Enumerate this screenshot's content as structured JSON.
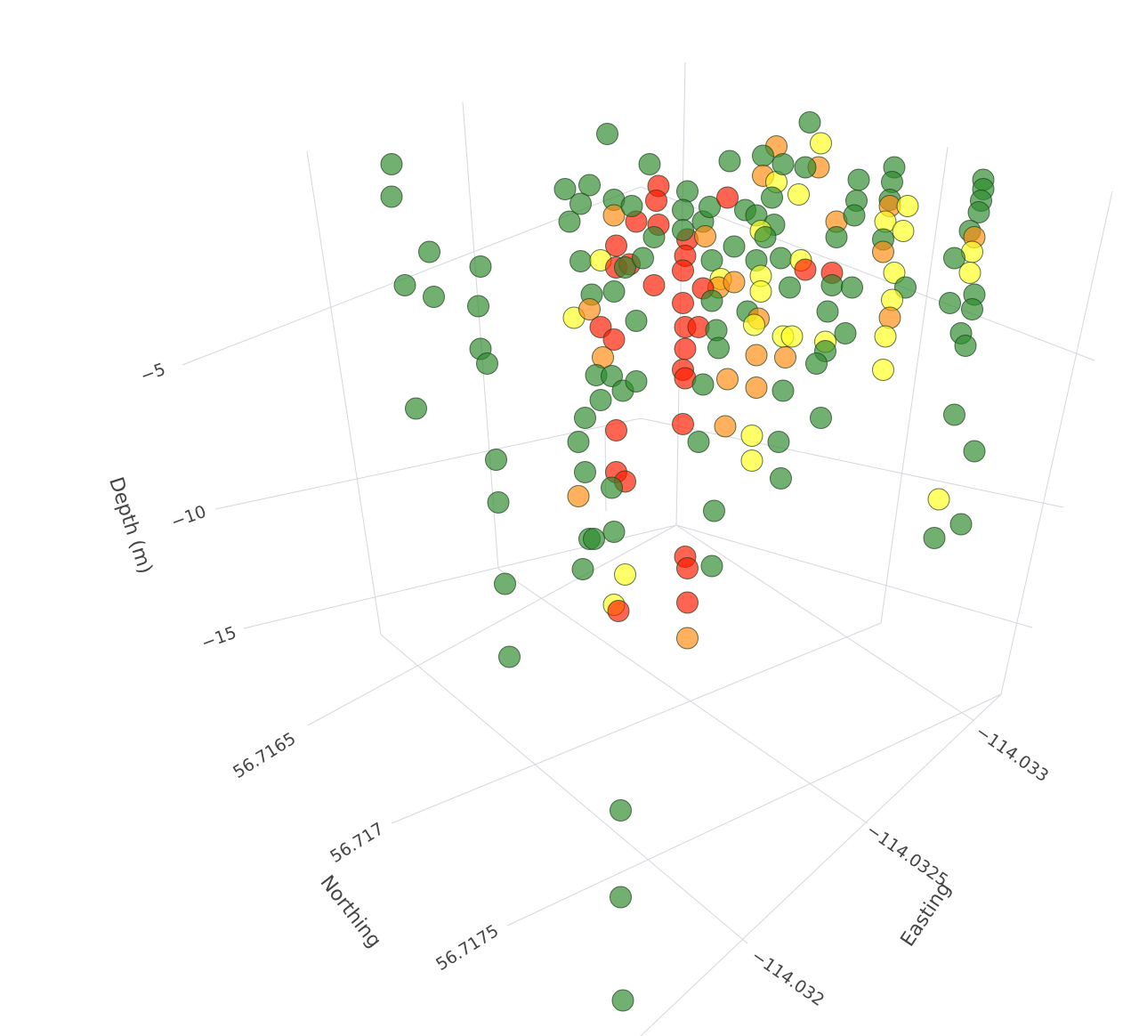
{
  "chart_data": {
    "type": "scatter3d",
    "axes": {
      "x": {
        "title": "Easting",
        "ticks": [
          "−114.033",
          "−114.0325",
          "−114.032"
        ],
        "tick_values": [
          -114.033,
          -114.0325,
          -114.032
        ]
      },
      "y": {
        "title": "Northing",
        "ticks": [
          "56.7165",
          "56.717",
          "56.7175"
        ],
        "tick_values": [
          56.7165,
          56.717,
          56.7175
        ]
      },
      "z": {
        "title": "Depth (m)",
        "ticks": [
          "−5",
          "−10",
          "−15"
        ],
        "tick_values": [
          -5,
          -10,
          -15
        ]
      }
    },
    "grid": true,
    "legend": "none",
    "colors": {
      "g": "#2e8b2e",
      "y": "#ffff20",
      "o": "#ff8c10",
      "r": "#ff1a00"
    },
    "point_fields": [
      "easting",
      "northing",
      "depth",
      "color_class"
    ],
    "points": [
      [
        -114.03189,
        56.71633,
        -1.7,
        "g"
      ],
      [
        -114.03188,
        56.71634,
        -2.6,
        "g"
      ],
      [
        -114.03196,
        56.71643,
        -4.3,
        "g"
      ],
      [
        -114.0319,
        56.71638,
        -5.3,
        "g"
      ],
      [
        -114.03196,
        56.71645,
        -5.6,
        "g"
      ],
      [
        -114.03207,
        56.71655,
        -4.7,
        "g"
      ],
      [
        -114.03206,
        56.71655,
        -5.9,
        "g"
      ],
      [
        -114.03206,
        56.71656,
        -7.2,
        "g"
      ],
      [
        -114.03207,
        56.71658,
        -7.6,
        "g"
      ],
      [
        -114.0319,
        56.71643,
        -8.9,
        "g"
      ],
      [
        -114.03207,
        56.71662,
        -10.4,
        "g"
      ],
      [
        -114.03207,
        56.71663,
        -11.7,
        "g"
      ],
      [
        -114.03207,
        56.71666,
        -14.1,
        "g"
      ],
      [
        -114.03207,
        56.71668,
        -16.3,
        "g"
      ],
      [
        -114.03238,
        56.71681,
        -0.8,
        "g"
      ],
      [
        -114.03229,
        56.71696,
        -20.8,
        "g"
      ],
      [
        -114.03227,
        56.71698,
        -23.3,
        "g"
      ],
      [
        -114.03226,
        56.717,
        -26.4,
        "g"
      ],
      [
        -114.03228,
        56.71672,
        -2.5,
        "g"
      ],
      [
        -114.03228,
        56.71674,
        -3.4,
        "g"
      ],
      [
        -114.0323,
        56.71677,
        -4.6,
        "g"
      ],
      [
        -114.03232,
        56.7168,
        -5.6,
        "g"
      ],
      [
        -114.03227,
        56.71677,
        -6.2,
        "y"
      ],
      [
        -114.03231,
        56.7168,
        -6.0,
        "o"
      ],
      [
        -114.03233,
        56.71683,
        -6.5,
        "r"
      ],
      [
        -114.03233,
        56.71684,
        -7.4,
        "o"
      ],
      [
        -114.03231,
        56.71683,
        -7.9,
        "g"
      ],
      [
        -114.03228,
        56.71681,
        -9.2,
        "g"
      ],
      [
        -114.03226,
        56.7168,
        -9.9,
        "g"
      ],
      [
        -114.03227,
        56.71682,
        -10.8,
        "g"
      ],
      [
        -114.03225,
        56.71681,
        -11.5,
        "o"
      ],
      [
        -114.03227,
        56.71684,
        -12.8,
        "g"
      ],
      [
        -114.03225,
        56.71683,
        -13.7,
        "g"
      ],
      [
        -114.03238,
        56.71684,
        -2.7,
        "g"
      ],
      [
        -114.03238,
        56.71684,
        -3.2,
        "o"
      ],
      [
        -114.03238,
        56.71685,
        -4.1,
        "r"
      ],
      [
        -114.03234,
        56.71682,
        -4.5,
        "y"
      ],
      [
        -114.03238,
        56.71685,
        -4.8,
        "r"
      ],
      [
        -114.03237,
        56.71685,
        -5.5,
        "g"
      ],
      [
        -114.03236,
        56.71686,
        -6.9,
        "r"
      ],
      [
        -114.03235,
        56.71686,
        -8.0,
        "g"
      ],
      [
        -114.03237,
        56.71689,
        -8.4,
        "g"
      ],
      [
        -114.03232,
        56.71684,
        -8.7,
        "g"
      ],
      [
        -114.03235,
        56.71688,
        -9.6,
        "r"
      ],
      [
        -114.03234,
        56.71689,
        -10.8,
        "r"
      ],
      [
        -114.03236,
        56.71691,
        -11.1,
        "r"
      ],
      [
        -114.03233,
        56.71688,
        -11.3,
        "g"
      ],
      [
        -114.03232,
        56.7169,
        -12.5,
        "g"
      ],
      [
        -114.03228,
        56.71685,
        -12.8,
        "g"
      ],
      [
        -114.03234,
        56.71693,
        -13.8,
        "y"
      ],
      [
        -114.03231,
        56.71691,
        -14.7,
        "y"
      ],
      [
        -114.03232,
        56.71692,
        -14.9,
        "r"
      ],
      [
        -114.03247,
        56.71691,
        -1.7,
        "g"
      ],
      [
        -114.03249,
        56.71693,
        -2.4,
        "r"
      ],
      [
        -114.03248,
        56.71693,
        -2.8,
        "r"
      ],
      [
        -114.03243,
        56.71689,
        -3.4,
        "r"
      ],
      [
        -114.03248,
        56.71694,
        -3.5,
        "r"
      ],
      [
        -114.03242,
        56.71688,
        -2.9,
        "g"
      ],
      [
        -114.03247,
        56.71693,
        -3.9,
        "g"
      ],
      [
        -114.03241,
        56.71688,
        -4.7,
        "r"
      ],
      [
        -114.03246,
        56.71694,
        -5.3,
        "r"
      ],
      [
        -114.0324,
        56.71687,
        -4.8,
        "g"
      ],
      [
        -114.03241,
        56.71691,
        -6.3,
        "g"
      ],
      [
        -114.0324,
        56.71692,
        -8.1,
        "g"
      ],
      [
        -114.03233,
        56.71678,
        -2.3,
        "g"
      ],
      [
        -114.03231,
        56.71676,
        -2.9,
        "g"
      ],
      [
        -114.03255,
        56.717,
        -2.5,
        "g"
      ],
      [
        -114.03254,
        56.71699,
        -3.1,
        "g"
      ],
      [
        -114.03254,
        56.71701,
        -3.9,
        "r"
      ],
      [
        -114.03254,
        56.717,
        -4.5,
        "r"
      ],
      [
        -114.03253,
        56.717,
        -4.9,
        "r"
      ],
      [
        -114.03252,
        56.71701,
        -5.8,
        "r"
      ],
      [
        -114.03252,
        56.71702,
        -6.5,
        "r"
      ],
      [
        -114.03252,
        56.71702,
        -7.2,
        "r"
      ],
      [
        -114.03251,
        56.71702,
        -7.8,
        "r"
      ],
      [
        -114.03251,
        56.71703,
        -8.0,
        "r"
      ],
      [
        -114.0325,
        56.71703,
        -9.4,
        "r"
      ],
      [
        -114.03253,
        56.71707,
        -9.9,
        "g"
      ],
      [
        -114.03255,
        56.71712,
        -11.9,
        "g"
      ],
      [
        -114.03248,
        56.71706,
        -13.3,
        "r"
      ],
      [
        -114.03248,
        56.71707,
        -13.6,
        "r"
      ],
      [
        -114.03248,
        56.71707,
        -14.7,
        "r"
      ],
      [
        -114.03247,
        56.71708,
        -15.7,
        "o"
      ],
      [
        -114.03254,
        56.71712,
        -13.6,
        "g"
      ],
      [
        -114.03253,
        56.717,
        -3.6,
        "g"
      ],
      [
        -114.03258,
        56.71704,
        -3.4,
        "g"
      ],
      [
        -114.0326,
        56.71705,
        -3.0,
        "g"
      ],
      [
        -114.03265,
        56.71709,
        -1.6,
        "g"
      ],
      [
        -114.03264,
        56.71709,
        -2.7,
        "r"
      ],
      [
        -114.03258,
        56.71705,
        -3.8,
        "o"
      ],
      [
        -114.03265,
        56.71711,
        -4.2,
        "g"
      ],
      [
        -114.03259,
        56.71707,
        -4.5,
        "g"
      ],
      [
        -114.03261,
        56.71709,
        -5.1,
        "y"
      ],
      [
        -114.0326,
        56.71709,
        -5.3,
        "o"
      ],
      [
        -114.03257,
        56.71705,
        -5.4,
        "r"
      ],
      [
        -114.03264,
        56.71712,
        -5.2,
        "o"
      ],
      [
        -114.03259,
        56.71707,
        -5.8,
        "g"
      ],
      [
        -114.03255,
        56.71705,
        -6.5,
        "r"
      ],
      [
        -114.03259,
        56.71709,
        -6.6,
        "g"
      ],
      [
        -114.03259,
        56.7171,
        -7.1,
        "g"
      ],
      [
        -114.03261,
        56.71712,
        -8.1,
        "o"
      ],
      [
        -114.03255,
        56.71707,
        -8.2,
        "g"
      ],
      [
        -114.03259,
        56.71713,
        -9.4,
        "o"
      ],
      [
        -114.03276,
        56.71719,
        -1.2,
        "o"
      ],
      [
        -114.03273,
        56.71716,
        -1.5,
        "g"
      ],
      [
        -114.03272,
        56.71717,
        -2.0,
        "o"
      ],
      [
        -114.03275,
        56.7172,
        -2.2,
        "y"
      ],
      [
        -114.03277,
        56.71721,
        -1.7,
        "g"
      ],
      [
        -114.03274,
        56.71719,
        -2.7,
        "g"
      ],
      [
        -114.03268,
        56.71713,
        -3.1,
        "g"
      ],
      [
        -114.0327,
        56.71716,
        -3.2,
        "g"
      ],
      [
        -114.03274,
        56.7172,
        -3.5,
        "g"
      ],
      [
        -114.03271,
        56.71717,
        -3.7,
        "y"
      ],
      [
        -114.03272,
        56.71718,
        -3.9,
        "g"
      ],
      [
        -114.03269,
        56.71717,
        -4.5,
        "g"
      ],
      [
        -114.03275,
        56.71722,
        -4.5,
        "g"
      ],
      [
        -114.0327,
        56.71718,
        -5.0,
        "y"
      ],
      [
        -114.03276,
        56.71725,
        -5.3,
        "g"
      ],
      [
        -114.0327,
        56.71718,
        -5.5,
        "y"
      ],
      [
        -114.03266,
        56.71716,
        -6.0,
        "g"
      ],
      [
        -114.03269,
        56.71718,
        -6.3,
        "o"
      ],
      [
        -114.03268,
        56.71717,
        -6.5,
        "y"
      ],
      [
        -114.03274,
        56.71724,
        -6.8,
        "y"
      ],
      [
        -114.03276,
        56.71726,
        -6.8,
        "y"
      ],
      [
        -114.03274,
        56.71725,
        -7.4,
        "o"
      ],
      [
        -114.03268,
        56.71718,
        -7.4,
        "o"
      ],
      [
        -114.03267,
        56.71719,
        -8.3,
        "o"
      ],
      [
        -114.03273,
        56.71725,
        -8.4,
        "g"
      ],
      [
        -114.03265,
        56.71719,
        -9.7,
        "y"
      ],
      [
        -114.03271,
        56.71725,
        -9.9,
        "g"
      ],
      [
        -114.03265,
        56.71719,
        -10.5,
        "y"
      ],
      [
        -114.03271,
        56.71726,
        -11.0,
        "g"
      ],
      [
        -114.03284,
        56.71726,
        -0.5,
        "g"
      ],
      [
        -114.03286,
        56.71729,
        -1.1,
        "y"
      ],
      [
        -114.03285,
        56.71729,
        -1.8,
        "o"
      ],
      [
        -114.03282,
        56.71726,
        -1.8,
        "g"
      ],
      [
        -114.0328,
        56.71725,
        -2.6,
        "y"
      ],
      [
        -114.03288,
        56.71734,
        -3.4,
        "o"
      ],
      [
        -114.03288,
        56.71734,
        -3.9,
        "g"
      ],
      [
        -114.03279,
        56.71727,
        -4.5,
        "y"
      ],
      [
        -114.0328,
        56.71728,
        -4.8,
        "r"
      ],
      [
        -114.03286,
        56.71734,
        -4.9,
        "r"
      ],
      [
        -114.03286,
        56.71734,
        -5.3,
        "g"
      ],
      [
        -114.0329,
        56.71739,
        -5.3,
        "g"
      ],
      [
        -114.03284,
        56.71734,
        -6.0,
        "g"
      ],
      [
        -114.03288,
        56.71738,
        -6.7,
        "g"
      ],
      [
        -114.03283,
        56.71734,
        -6.9,
        "y"
      ],
      [
        -114.03283,
        56.71734,
        -7.2,
        "g"
      ],
      [
        -114.03281,
        56.71732,
        -7.6,
        "g"
      ],
      [
        -114.03281,
        56.71734,
        -9.2,
        "g"
      ],
      [
        -114.03294,
        56.71738,
        -2.2,
        "g"
      ],
      [
        -114.03293,
        56.71738,
        -2.8,
        "g"
      ],
      [
        -114.03292,
        56.71738,
        -3.2,
        "g"
      ],
      [
        -114.03302,
        56.71746,
        -1.8,
        "g"
      ],
      [
        -114.03301,
        56.71746,
        -2.2,
        "g"
      ],
      [
        -114.033,
        56.71746,
        -2.7,
        "g"
      ],
      [
        -114.033,
        56.71746,
        -2.9,
        "o"
      ],
      [
        -114.03304,
        56.7175,
        -2.9,
        "y"
      ],
      [
        -114.03299,
        56.71745,
        -3.4,
        "y"
      ],
      [
        -114.03303,
        56.71749,
        -3.7,
        "y"
      ],
      [
        -114.03298,
        56.71745,
        -3.9,
        "g"
      ],
      [
        -114.03298,
        56.71745,
        -4.3,
        "o"
      ],
      [
        -114.033,
        56.71748,
        -4.9,
        "y"
      ],
      [
        -114.03302,
        56.71751,
        -5.3,
        "g"
      ],
      [
        -114.03299,
        56.71748,
        -5.7,
        "y"
      ],
      [
        -114.03298,
        56.71748,
        -6.2,
        "o"
      ],
      [
        -114.03297,
        56.71747,
        -6.8,
        "y"
      ],
      [
        -114.03296,
        56.71747,
        -7.8,
        "y"
      ],
      [
        -114.03322,
        56.71766,
        -2.2,
        "g"
      ],
      [
        -114.03322,
        56.71766,
        -2.5,
        "g"
      ],
      [
        -114.03321,
        56.71766,
        -2.8,
        "g"
      ],
      [
        -114.0332,
        56.71766,
        -3.1,
        "g"
      ],
      [
        -114.03318,
        56.71764,
        -3.7,
        "g"
      ],
      [
        -114.03319,
        56.71765,
        -3.9,
        "o"
      ],
      [
        -114.03318,
        56.71765,
        -4.3,
        "y"
      ],
      [
        -114.03314,
        56.71761,
        -4.5,
        "g"
      ],
      [
        -114.03317,
        56.71765,
        -4.9,
        "y"
      ],
      [
        -114.03318,
        56.71766,
        -5.6,
        "g"
      ],
      [
        -114.03312,
        56.71761,
        -5.8,
        "g"
      ],
      [
        -114.03317,
        56.71766,
        -6.0,
        "g"
      ],
      [
        -114.03314,
        56.71764,
        -6.7,
        "g"
      ],
      [
        -114.03315,
        56.71765,
        -7.1,
        "g"
      ],
      [
        -114.03311,
        56.71764,
        -9.1,
        "g"
      ],
      [
        -114.03315,
        56.71769,
        -10.2,
        "g"
      ],
      [
        -114.03306,
        56.71762,
        -11.6,
        "y"
      ],
      [
        -114.03311,
        56.71767,
        -12.4,
        "g"
      ],
      [
        -114.03304,
        56.71762,
        -12.7,
        "g"
      ],
      [
        -114.03244,
        56.71691,
        -4.5,
        "g"
      ]
    ]
  }
}
